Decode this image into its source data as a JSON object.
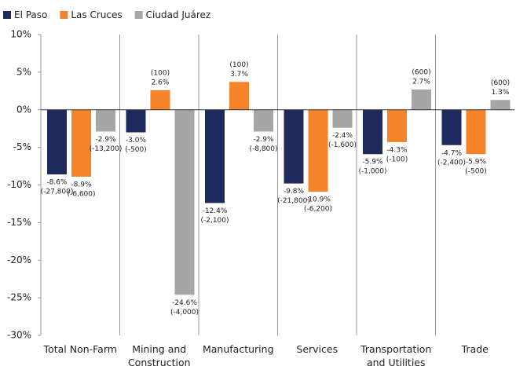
{
  "chart_data": {
    "type": "bar",
    "categories": [
      "Total Non-Farm",
      "Mining and\nConstruction",
      "Manufacturing",
      "Services",
      "Transportation\nand Utilities",
      "Trade"
    ],
    "series": [
      {
        "name": "El Paso",
        "color": "#1f2a5c",
        "values": [
          -8.6,
          -3.0,
          -12.4,
          -9.8,
          -5.9,
          -4.7
        ],
        "value_labels": [
          "-8.6%",
          "-3.0%",
          "-12.4%",
          "-9.8%",
          "-5.9%",
          "-4.7%"
        ],
        "jobs": [
          -27800,
          -500,
          -2100,
          -21800,
          -1000,
          -2400
        ],
        "jobs_labels": [
          "(-27,800)",
          "(-500)",
          "(-2,100)",
          "(-21,800)",
          "(-1,000)",
          "(-2,400)"
        ]
      },
      {
        "name": "Las Cruces",
        "color": "#f5832a",
        "values": [
          -8.9,
          2.6,
          3.7,
          -10.9,
          -4.3,
          -5.9
        ],
        "value_labels": [
          "-8.9%",
          "2.6%",
          "3.7%",
          "-10.9%",
          "-4.3%",
          "-5.9%"
        ],
        "jobs": [
          -6600,
          100,
          100,
          -6200,
          -100,
          -500
        ],
        "jobs_labels": [
          "(-6,600)",
          "(100)",
          "(100)",
          "(-6,200)",
          "(-100)",
          "(-500)"
        ]
      },
      {
        "name": "Ciudad Juárez",
        "color": "#a6a6a6",
        "values": [
          -2.9,
          -24.6,
          -2.9,
          -2.4,
          2.7,
          1.3
        ],
        "value_labels": [
          "-2.9%",
          "-24.6%",
          "-2.9%",
          "-2.4%",
          "2.7%",
          "1.3%"
        ],
        "jobs": [
          -13200,
          -4000,
          -8800,
          -1600,
          600,
          600
        ],
        "jobs_labels": [
          "(-13,200)",
          "(-4,000)",
          "(-8,800)",
          "(-1,600)",
          "(600)",
          "(600)"
        ]
      }
    ],
    "ylim": [
      -30,
      10
    ],
    "yticks": [
      {
        "value": 10,
        "label": "10%"
      },
      {
        "value": 5,
        "label": "5%"
      },
      {
        "value": 0,
        "label": "0%"
      },
      {
        "value": -5,
        "label": "-5%"
      },
      {
        "value": -10,
        "label": "-10%"
      },
      {
        "value": -15,
        "label": "-15%"
      },
      {
        "value": -20,
        "label": "-20%"
      },
      {
        "value": -25,
        "label": "-25%"
      },
      {
        "value": -30,
        "label": "-30%"
      }
    ],
    "legend": "top-left"
  }
}
